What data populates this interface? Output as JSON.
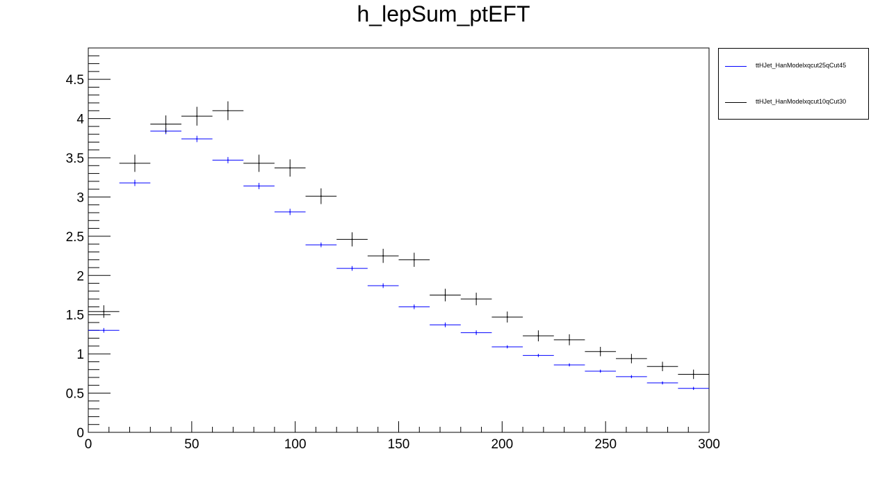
{
  "chart_data": {
    "type": "scatter",
    "title": "h_lepSum_ptEFT",
    "xlabel": "",
    "ylabel": "",
    "xlim": [
      0,
      300
    ],
    "ylim": [
      0,
      4.9
    ],
    "x_ticks": [
      "0",
      "50",
      "100",
      "150",
      "200",
      "250",
      "300"
    ],
    "y_ticks": [
      "0",
      "0.5",
      "1",
      "1.5",
      "2",
      "2.5",
      "3",
      "3.5",
      "4",
      "4.5"
    ],
    "grid": false,
    "legend_position": "top-right outside",
    "bin_edges": [
      0,
      15,
      30,
      45,
      60,
      75,
      90,
      105,
      120,
      135,
      150,
      165,
      180,
      195,
      210,
      225,
      240,
      255,
      270,
      285,
      300
    ],
    "series": [
      {
        "name": "ttHJet_HanModelxqcut25qCut45",
        "color": "#0000ff",
        "values": [
          1.3,
          3.18,
          3.84,
          3.74,
          3.47,
          3.14,
          2.81,
          2.39,
          2.09,
          1.87,
          1.6,
          1.37,
          1.27,
          1.09,
          0.98,
          0.86,
          0.78,
          0.71,
          0.63,
          0.56
        ],
        "errors": [
          0.03,
          0.04,
          0.04,
          0.04,
          0.04,
          0.04,
          0.04,
          0.03,
          0.03,
          0.03,
          0.03,
          0.03,
          0.03,
          0.02,
          0.02,
          0.02,
          0.02,
          0.02,
          0.02,
          0.02
        ]
      },
      {
        "name": "ttHJet_HanModelxqcut10qCut30",
        "color": "#000000",
        "values": [
          1.54,
          3.43,
          3.93,
          4.03,
          4.1,
          3.43,
          3.37,
          3.01,
          2.46,
          2.25,
          2.2,
          1.75,
          1.7,
          1.47,
          1.23,
          1.18,
          1.03,
          0.94,
          0.84,
          0.74
        ],
        "errors": [
          0.08,
          0.11,
          0.11,
          0.12,
          0.12,
          0.11,
          0.11,
          0.1,
          0.09,
          0.09,
          0.09,
          0.08,
          0.08,
          0.07,
          0.07,
          0.07,
          0.06,
          0.06,
          0.06,
          0.06
        ]
      }
    ]
  }
}
